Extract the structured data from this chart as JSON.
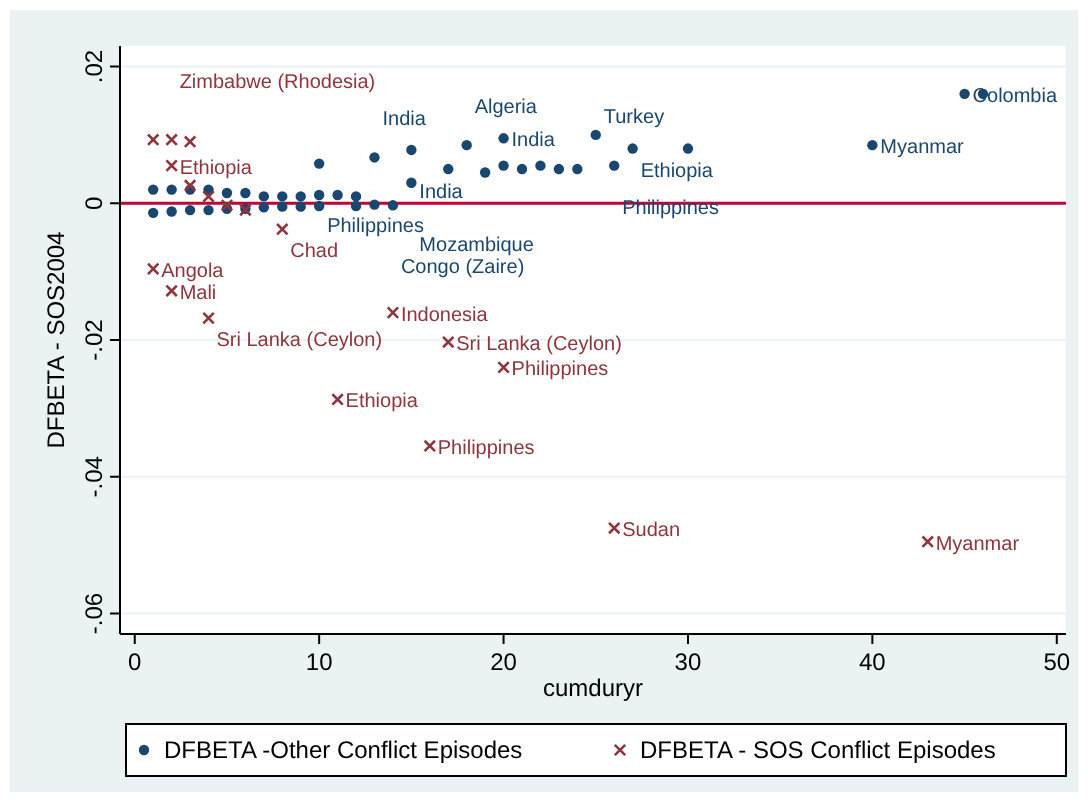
{
  "chart_data": {
    "type": "scatter",
    "xlabel": "cumduryr",
    "ylabel": "DFBETA - SOS2004",
    "xlim": [
      -0.8,
      50.5
    ],
    "ylim": [
      -0.063,
      0.023
    ],
    "xticks": [
      0,
      10,
      20,
      30,
      40,
      50
    ],
    "yticks": [
      {
        "value": 0.02,
        "label": ".02"
      },
      {
        "value": 0,
        "label": "0"
      },
      {
        "value": -0.02,
        "label": "-.02"
      },
      {
        "value": -0.04,
        "label": "-.04"
      },
      {
        "value": -0.06,
        "label": "-.06"
      }
    ],
    "grid": "y",
    "legend": "bottom",
    "ref_lines": [
      {
        "axis": "y",
        "value": 0,
        "color": "#c10534"
      }
    ],
    "series": [
      {
        "name": "DFBETA -Other Conflict Episodes",
        "color": "#1a476f",
        "marker": "circle",
        "x": [
          45,
          46,
          40,
          25,
          20,
          27,
          30,
          18,
          15,
          13,
          10,
          20,
          22,
          26,
          15,
          14,
          1,
          2,
          3,
          4,
          5,
          6,
          7,
          8,
          9,
          10,
          11,
          12,
          1,
          2,
          3,
          4,
          5,
          6,
          7,
          8,
          9,
          10,
          12,
          13,
          17,
          19,
          21,
          23,
          24
        ],
        "values": [
          0.016,
          0.016,
          0.0085,
          0.01,
          0.0095,
          0.008,
          0.008,
          0.0085,
          0.0078,
          0.0067,
          0.0058,
          0.0055,
          0.0055,
          0.0055,
          0.003,
          -0.0003,
          0.002,
          0.002,
          0.002,
          0.002,
          0.0015,
          0.0015,
          0.001,
          0.001,
          0.001,
          0.0012,
          0.0012,
          0.001,
          -0.0014,
          -0.0012,
          -0.001,
          -0.001,
          -0.0008,
          -0.0008,
          -0.0006,
          -0.0005,
          -0.0005,
          -0.0004,
          -0.0004,
          -0.0002,
          0.005,
          0.0045,
          0.005,
          0.005,
          0.005
        ]
      },
      {
        "name": "DFBETA - SOS Conflict Episodes",
        "color": "#90353b",
        "marker": "cross",
        "x": [
          43,
          26,
          16,
          11,
          20,
          17,
          14,
          4,
          2,
          1,
          8,
          1,
          2,
          3,
          2,
          3,
          4,
          5,
          6
        ],
        "values": [
          -0.0495,
          -0.0475,
          -0.0355,
          -0.0287,
          -0.024,
          -0.0203,
          -0.016,
          -0.0168,
          -0.0128,
          -0.0096,
          -0.0038,
          0.0093,
          0.0093,
          0.009,
          0.0055,
          0.0026,
          0.001,
          -0.0003,
          -0.001
        ]
      }
    ],
    "annotations": [
      {
        "text": "Colombia",
        "x": 45,
        "y": 0.016
      },
      {
        "text": "Myanmar",
        "x": 40,
        "y": 0.0085
      },
      {
        "text": "Turkey",
        "x": 25,
        "y": 0.01
      },
      {
        "text": "India",
        "x": 20,
        "y": 0.0095
      },
      {
        "text": "Ethiopia",
        "x": 27,
        "y": 0.008
      },
      {
        "text": "Algeria",
        "x": 18,
        "y": 0.0085
      },
      {
        "text": "India",
        "x": 15,
        "y": 0.0078
      },
      {
        "text": "India",
        "x": 13,
        "y": 0.0067
      },
      {
        "text": "Philippines",
        "x": 10,
        "y": 0.0058
      },
      {
        "text": "Philippines",
        "x": 26,
        "y": 0.0055
      },
      {
        "text": "Mozambique",
        "x": 15,
        "y": 0.003
      },
      {
        "text": "Congo (Zaire)",
        "x": 14,
        "y": -0.0003
      },
      {
        "text": "Myanmar",
        "x": 43,
        "y": -0.0495
      },
      {
        "text": "Sudan",
        "x": 26,
        "y": -0.0475
      },
      {
        "text": "Philippines",
        "x": 16,
        "y": -0.0355
      },
      {
        "text": "Ethiopia",
        "x": 11,
        "y": -0.0287
      },
      {
        "text": "Philippines",
        "x": 20,
        "y": -0.024
      },
      {
        "text": "Sri Lanka (Ceylon)",
        "x": 17,
        "y": -0.0203
      },
      {
        "text": "Indonesia",
        "x": 14,
        "y": -0.016
      },
      {
        "text": "Sri Lanka (Ceylon)",
        "x": 4,
        "y": -0.0168
      },
      {
        "text": "Mali",
        "x": 2,
        "y": -0.0128
      },
      {
        "text": "Angola",
        "x": 1,
        "y": -0.0096
      },
      {
        "text": "Chad",
        "x": 8,
        "y": -0.0038
      },
      {
        "text": "Zimbabwe (Rhodesia)",
        "x": 2,
        "y": 0.0093
      },
      {
        "text": "Ethiopia",
        "x": 2,
        "y": 0.0055
      }
    ]
  }
}
